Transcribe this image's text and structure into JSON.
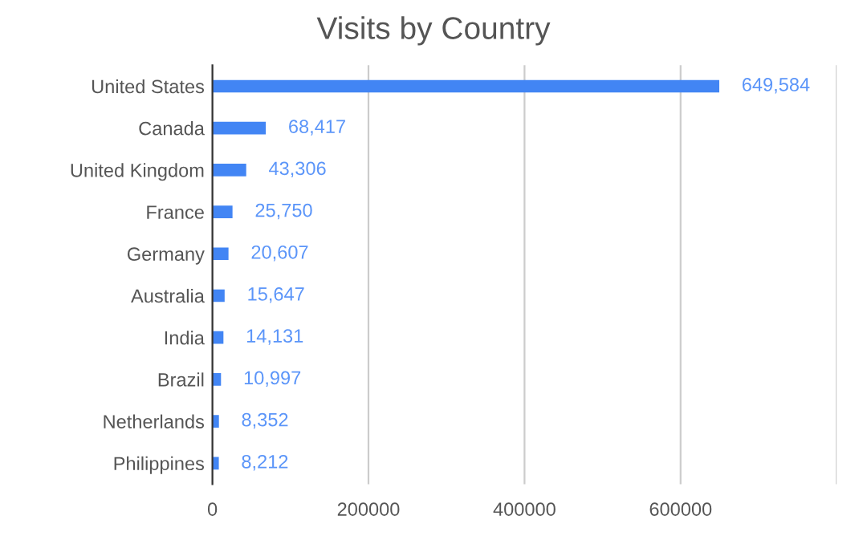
{
  "chart_data": {
    "type": "bar",
    "orientation": "horizontal",
    "title": "Visits by Country",
    "categories": [
      "United States",
      "Canada",
      "United Kingdom",
      "France",
      "Germany",
      "Australia",
      "India",
      "Brazil",
      "Netherlands",
      "Philippines"
    ],
    "values": [
      649584,
      68417,
      43306,
      25750,
      20607,
      15647,
      14131,
      10997,
      8352,
      8212
    ],
    "value_labels": [
      "649,584",
      "68,417",
      "43,306",
      "25,750",
      "20,607",
      "15,647",
      "14,131",
      "10,997",
      "8,352",
      "8,212"
    ],
    "color": "#4285f4",
    "xlim": [
      0,
      800000
    ],
    "xticks": [
      0,
      200000,
      400000,
      600000,
      {
        "value": 800000,
        "label": null
      }
    ],
    "grid": "x",
    "legend": false
  }
}
